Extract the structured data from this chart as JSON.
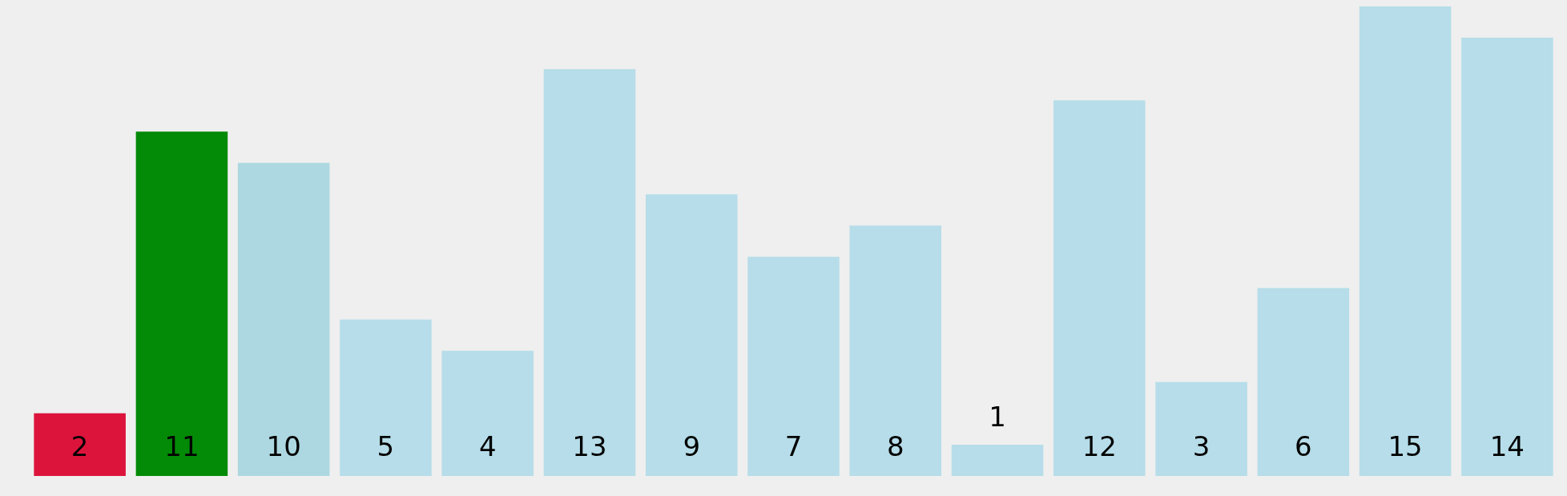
{
  "chart_data": {
    "type": "bar",
    "categories": [
      null,
      null,
      null,
      null,
      null,
      null,
      null,
      null,
      null,
      null,
      null,
      null,
      null,
      null,
      null
    ],
    "values": [
      2,
      11,
      10,
      5,
      4,
      13,
      9,
      7,
      8,
      1,
      12,
      3,
      6,
      15,
      14
    ],
    "colors": [
      "#dc143c",
      "#038a07",
      "#add8e1",
      "#b6dde9",
      "#b6dde9",
      "#b6dde9",
      "#b6dde9",
      "#b6dde9",
      "#b6dde9",
      "#b6dde9",
      "#b6dde9",
      "#b6dde9",
      "#b6dde9",
      "#b6dde9",
      "#b6dde9"
    ],
    "data_labels": true
  }
}
